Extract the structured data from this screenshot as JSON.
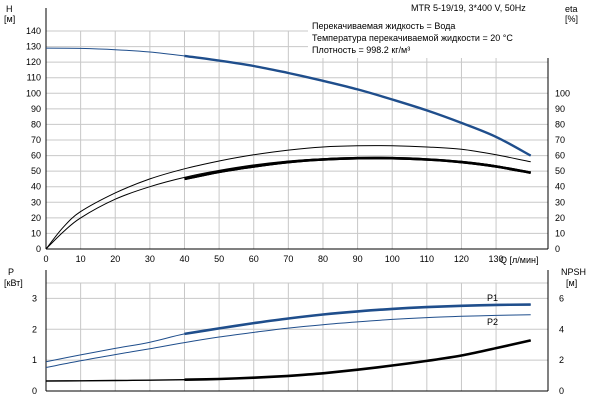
{
  "model": "MTR 5-19/19, 3*400 V, 50Hz",
  "info_lines": [
    "Перекачиваемая жидкость = Вода",
    "Температура перекачиваемой жидкости = 20 °C",
    "Плотность = 998.2 кг/м³"
  ],
  "colors": {
    "blue": "#1f4e8c",
    "black": "#000000",
    "grid": "#c8c8c8"
  },
  "chart_data": [
    {
      "type": "line",
      "title": "MTR 5-19/19, 3*400 V, 50Hz",
      "xlabel": "Q [л/мин]",
      "ylabel": "H\n[м]",
      "y2label": "eta\n[%]",
      "xlim": [
        0,
        145
      ],
      "ylim": [
        0,
        140
      ],
      "y2lim": [
        0,
        140
      ],
      "x_ticks": [
        0,
        10,
        20,
        30,
        40,
        50,
        60,
        70,
        80,
        90,
        100,
        110,
        120,
        130
      ],
      "y_ticks": [
        0,
        10,
        20,
        30,
        40,
        50,
        60,
        70,
        80,
        90,
        100,
        110,
        120,
        130,
        140
      ],
      "y2_ticks": [
        0,
        10,
        20,
        30,
        40,
        50,
        60,
        70,
        80,
        90,
        100
      ],
      "grid": true,
      "series": [
        {
          "key": "H",
          "axis": "left",
          "color": "#1f4e8c",
          "thick_from_x": 40,
          "x": [
            0,
            10,
            20,
            30,
            40,
            50,
            60,
            70,
            80,
            90,
            100,
            110,
            120,
            130,
            140
          ],
          "y": [
            129,
            128.8,
            128,
            126.5,
            124,
            121,
            117.5,
            113,
            108,
            102.5,
            96,
            89,
            81,
            72,
            60
          ]
        },
        {
          "key": "eta_outer",
          "axis": "right",
          "color": "#000000",
          "thick_from_x": 999,
          "x": [
            0,
            5,
            10,
            20,
            30,
            40,
            50,
            60,
            70,
            80,
            90,
            100,
            110,
            120,
            130,
            140
          ],
          "y": [
            0,
            14,
            24,
            36,
            45,
            51.5,
            56.5,
            60.5,
            63.5,
            65.5,
            66.3,
            66.3,
            65.5,
            64,
            60.5,
            56
          ]
        },
        {
          "key": "eta_mid",
          "axis": "right",
          "color": "#000000",
          "thick_from_x": 999,
          "x": [
            0,
            5,
            10,
            20,
            30,
            40,
            50,
            60,
            70,
            80,
            90,
            100,
            110,
            120,
            130,
            140
          ],
          "y": [
            0,
            11,
            20,
            32,
            40,
            46,
            50.5,
            54,
            56.5,
            58,
            58.5,
            58.3,
            57.5,
            56,
            53.5,
            49
          ]
        },
        {
          "key": "eta_thick",
          "axis": "right",
          "color": "#000000",
          "thick_from_x": 40,
          "x": [
            40,
            50,
            60,
            70,
            80,
            90,
            100,
            110,
            120,
            130,
            140
          ],
          "y": [
            45,
            49.5,
            53,
            55.8,
            57.5,
            58.3,
            58.3,
            57.5,
            55.8,
            53,
            49
          ]
        }
      ]
    },
    {
      "type": "line",
      "xlabel": "",
      "ylabel": "P\n[кВт]",
      "y2label": "NPSH\n[м]",
      "xlim": [
        0,
        145
      ],
      "ylim": [
        0,
        3.5
      ],
      "y2lim": [
        0,
        7
      ],
      "y_ticks": [
        0,
        1,
        2,
        3
      ],
      "y2_ticks": [
        0,
        2,
        4,
        6
      ],
      "grid": true,
      "series": [
        {
          "name": "P1",
          "axis": "left",
          "color": "#1f4e8c",
          "thick_from_x": 40,
          "x": [
            0,
            10,
            20,
            30,
            40,
            50,
            60,
            70,
            80,
            90,
            100,
            110,
            120,
            130,
            140
          ],
          "y": [
            0.95,
            1.17,
            1.38,
            1.58,
            1.85,
            2.03,
            2.2,
            2.35,
            2.48,
            2.58,
            2.66,
            2.72,
            2.76,
            2.79,
            2.8
          ]
        },
        {
          "name": "P2",
          "axis": "left",
          "color": "#1f4e8c",
          "thick_from_x": 999,
          "x": [
            0,
            10,
            20,
            30,
            40,
            50,
            60,
            70,
            80,
            90,
            100,
            110,
            120,
            130,
            140
          ],
          "y": [
            0.76,
            0.98,
            1.18,
            1.37,
            1.57,
            1.75,
            1.9,
            2.04,
            2.15,
            2.24,
            2.32,
            2.38,
            2.42,
            2.45,
            2.47
          ]
        },
        {
          "key": "NPSH",
          "axis": "right",
          "color": "#000000",
          "thick_from_x": 40,
          "x": [
            0,
            10,
            20,
            30,
            40,
            50,
            60,
            70,
            80,
            90,
            100,
            110,
            120,
            130,
            140
          ],
          "y": [
            0.65,
            0.66,
            0.68,
            0.7,
            0.73,
            0.78,
            0.86,
            0.98,
            1.15,
            1.38,
            1.65,
            1.95,
            2.3,
            2.78,
            3.28
          ]
        }
      ]
    }
  ]
}
